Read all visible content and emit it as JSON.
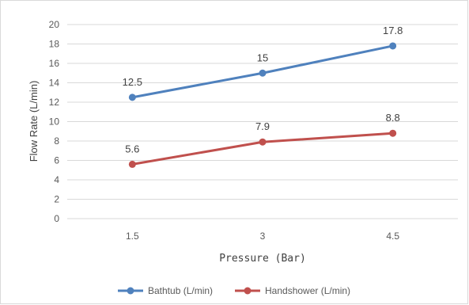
{
  "chart_data": {
    "type": "line",
    "title": "",
    "categories": [
      "1.5",
      "3",
      "4.5"
    ],
    "xlabel": "Pressure (Bar)",
    "ylabel": "Flow Rate (L/min)",
    "ylim": [
      0,
      20
    ],
    "yticks": [
      "0",
      "2",
      "4",
      "6",
      "8",
      "10",
      "12",
      "14",
      "16",
      "18",
      "20"
    ],
    "grid": true,
    "legend_position": "bottom",
    "series": [
      {
        "name": "Bathtub (L/min)",
        "values": [
          12.5,
          15,
          17.8
        ],
        "labels": [
          "12.5",
          "15",
          "17.8"
        ],
        "color": "#4f81bd"
      },
      {
        "name": "Handshower (L/min)",
        "values": [
          5.6,
          7.9,
          8.8
        ],
        "labels": [
          "5.6",
          "7.9",
          "8.8"
        ],
        "color": "#c0504d"
      }
    ]
  }
}
